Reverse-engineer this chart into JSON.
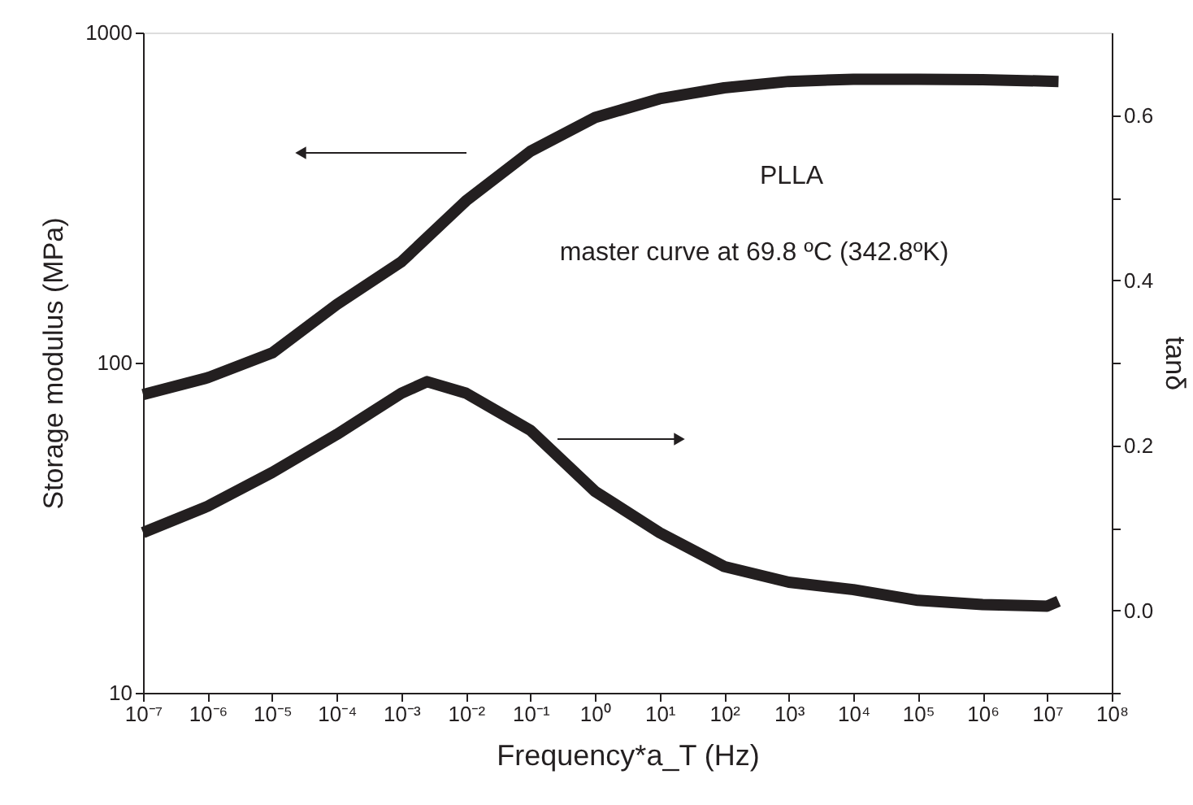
{
  "chart_data": {
    "type": "line",
    "xlabel": "Frequency*a_T (Hz)",
    "ylabel": "Storage modulus (MPa)",
    "y2label": "tanδ",
    "annotations": [
      "PLLA",
      "master curve at 69.8 ºC (342.8ºK)"
    ],
    "log": "xy",
    "xlim": [
      1e-07,
      100000000.0
    ],
    "xticks": [
      {
        "value": 1e-07,
        "label": "10⁻⁷"
      },
      {
        "value": 1e-06,
        "label": "10⁻⁶"
      },
      {
        "value": 1e-05,
        "label": "10⁻⁵"
      },
      {
        "value": 0.0001,
        "label": "10⁻⁴"
      },
      {
        "value": 0.001,
        "label": "10⁻³"
      },
      {
        "value": 0.01,
        "label": "10⁻²"
      },
      {
        "value": 0.1,
        "label": "10⁻¹"
      },
      {
        "value": 1,
        "label": "10⁰"
      },
      {
        "value": 10,
        "label": "10¹"
      },
      {
        "value": 100,
        "label": "10²"
      },
      {
        "value": 1000,
        "label": "10³"
      },
      {
        "value": 10000,
        "label": "10⁴"
      },
      {
        "value": 100000,
        "label": "10⁵"
      },
      {
        "value": 1000000,
        "label": "10⁶"
      },
      {
        "value": 10000000,
        "label": "10⁷"
      },
      {
        "value": 100000000,
        "label": "10⁸"
      }
    ],
    "ylim": [
      10,
      1000
    ],
    "yticks": [
      10,
      100,
      1000
    ],
    "y2lim": [
      -0.1,
      0.7
    ],
    "y2ticks": [
      {
        "value": -0.1,
        "label": null
      },
      {
        "value": 0.0,
        "label": "0.0"
      },
      {
        "value": 0.1,
        "label": null
      },
      {
        "value": 0.2,
        "label": "0.2"
      },
      {
        "value": 0.3,
        "label": null
      },
      {
        "value": 0.4,
        "label": "0.4"
      },
      {
        "value": 0.5,
        "label": null
      },
      {
        "value": 0.6,
        "label": "0.6"
      }
    ],
    "grid": false,
    "marker": "none",
    "line_style": "solid",
    "series": [
      {
        "color": "#231f20",
        "x": [
          1e-07,
          1e-06,
          1e-05,
          0.0001,
          0.001,
          0.01,
          0.1,
          1,
          10,
          100,
          1000,
          10000,
          100000,
          1000000,
          15000000
        ],
        "values": [
          80,
          90,
          107,
          150,
          202,
          309,
          437,
          553,
          630,
          680,
          711,
          722,
          722,
          720,
          711
        ]
      },
      {
        "color": "#231f20",
        "axis": "y2",
        "x": [
          1e-07,
          1e-06,
          1e-05,
          0.0001,
          0.001,
          0.0025,
          0.01,
          0.1,
          1,
          10,
          100,
          1000,
          10000,
          100000,
          1000000,
          10000000,
          15000000
        ],
        "values": [
          0.094,
          0.126,
          0.167,
          0.213,
          0.263,
          0.277,
          0.263,
          0.218,
          0.144,
          0.094,
          0.053,
          0.034,
          0.025,
          0.012,
          0.007,
          0.005,
          0.011
        ]
      }
    ]
  }
}
